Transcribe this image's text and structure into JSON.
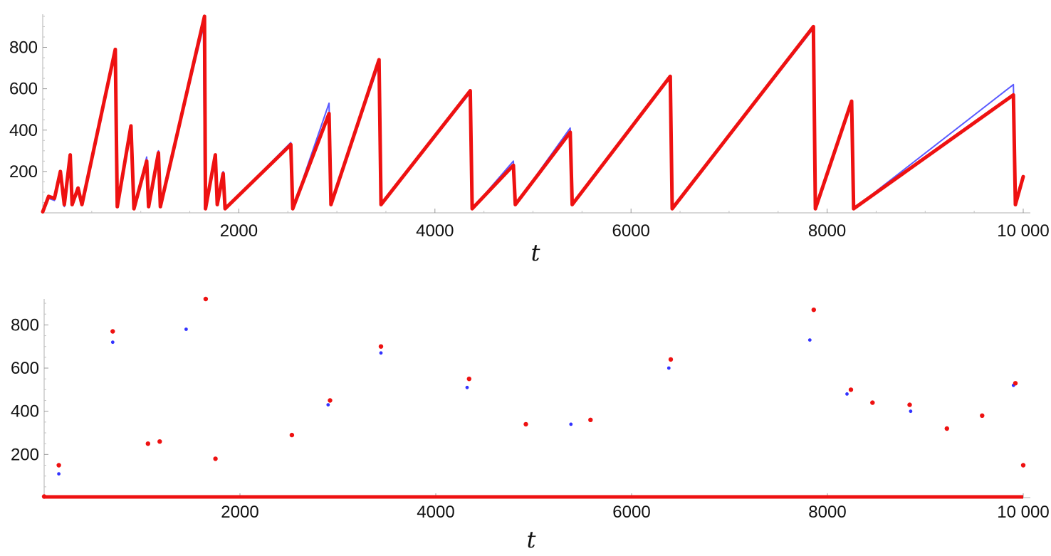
{
  "chart_data": [
    {
      "type": "line",
      "xlabel": "t",
      "ylabel": "",
      "xlim": [
        0,
        10000
      ],
      "ylim": [
        0,
        960
      ],
      "xticks": [
        2000,
        4000,
        6000,
        8000,
        10000
      ],
      "xtick_labels": [
        "2000",
        "4000",
        "6000",
        "8000",
        "10 000"
      ],
      "yticks": [
        200,
        400,
        600,
        800
      ],
      "ytick_labels": [
        "200",
        "400",
        "600",
        "800"
      ],
      "grid": false,
      "colors": {
        "blue": "#5a5aff",
        "red": "#ee1111"
      },
      "series": [
        {
          "color": "blue",
          "style": "thin-line",
          "points": [
            [
              0,
              5
            ],
            [
              60,
              70
            ],
            [
              120,
              60
            ],
            [
              180,
              190
            ],
            [
              220,
              30
            ],
            [
              280,
              270
            ],
            [
              300,
              40
            ],
            [
              360,
              110
            ],
            [
              400,
              40
            ],
            [
              740,
              770
            ],
            [
              760,
              30
            ],
            [
              900,
              420
            ],
            [
              930,
              20
            ],
            [
              1060,
              270
            ],
            [
              1080,
              30
            ],
            [
              1180,
              300
            ],
            [
              1200,
              30
            ],
            [
              1640,
              900
            ],
            [
              1650,
              20
            ],
            [
              1760,
              270
            ],
            [
              1780,
              40
            ],
            [
              1840,
              200
            ],
            [
              1860,
              20
            ],
            [
              2530,
              340
            ],
            [
              2550,
              20
            ],
            [
              2920,
              530
            ],
            [
              2940,
              40
            ],
            [
              3430,
              720
            ],
            [
              3450,
              40
            ],
            [
              4360,
              580
            ],
            [
              4380,
              20
            ],
            [
              4800,
              250
            ],
            [
              4820,
              40
            ],
            [
              5380,
              410
            ],
            [
              5400,
              40
            ],
            [
              6400,
              660
            ],
            [
              6420,
              20
            ],
            [
              7860,
              890
            ],
            [
              7880,
              20
            ],
            [
              8250,
              540
            ],
            [
              8270,
              20
            ],
            [
              9900,
              620
            ],
            [
              9920,
              40
            ],
            [
              10000,
              175
            ]
          ]
        },
        {
          "color": "red",
          "style": "thick-line",
          "points": [
            [
              0,
              5
            ],
            [
              60,
              80
            ],
            [
              120,
              70
            ],
            [
              180,
              200
            ],
            [
              220,
              40
            ],
            [
              280,
              280
            ],
            [
              300,
              40
            ],
            [
              360,
              120
            ],
            [
              400,
              40
            ],
            [
              740,
              790
            ],
            [
              760,
              30
            ],
            [
              900,
              420
            ],
            [
              930,
              20
            ],
            [
              1060,
              250
            ],
            [
              1080,
              30
            ],
            [
              1180,
              290
            ],
            [
              1200,
              30
            ],
            [
              1650,
              950
            ],
            [
              1660,
              20
            ],
            [
              1760,
              280
            ],
            [
              1780,
              40
            ],
            [
              1840,
              190
            ],
            [
              1860,
              20
            ],
            [
              2530,
              330
            ],
            [
              2550,
              20
            ],
            [
              2920,
              480
            ],
            [
              2940,
              40
            ],
            [
              3430,
              740
            ],
            [
              3450,
              40
            ],
            [
              4360,
              590
            ],
            [
              4380,
              20
            ],
            [
              4800,
              230
            ],
            [
              4820,
              40
            ],
            [
              5380,
              390
            ],
            [
              5400,
              40
            ],
            [
              6400,
              660
            ],
            [
              6420,
              20
            ],
            [
              7860,
              900
            ],
            [
              7880,
              20
            ],
            [
              8250,
              540
            ],
            [
              8270,
              20
            ],
            [
              9900,
              570
            ],
            [
              9920,
              40
            ],
            [
              10000,
              175
            ]
          ]
        }
      ]
    },
    {
      "type": "scatter",
      "xlabel": "t",
      "ylabel": "",
      "xlim": [
        0,
        10000
      ],
      "ylim": [
        0,
        920
      ],
      "xticks": [
        2000,
        4000,
        6000,
        8000,
        10000
      ],
      "xtick_labels": [
        "2000",
        "4000",
        "6000",
        "8000",
        "10 000"
      ],
      "yticks": [
        200,
        400,
        600,
        800
      ],
      "ytick_labels": [
        "200",
        "400",
        "600",
        "800"
      ],
      "grid": false,
      "colors": {
        "blue": "#3333ff",
        "red": "#ee1111"
      },
      "baseline_value": 0,
      "series": [
        {
          "color": "blue",
          "style": "small-dots",
          "points": [
            [
              150,
              110
            ],
            [
              700,
              720
            ],
            [
              1450,
              780
            ],
            [
              2900,
              430
            ],
            [
              3440,
              670
            ],
            [
              4320,
              510
            ],
            [
              5380,
              340
            ],
            [
              6380,
              600
            ],
            [
              7820,
              730
            ],
            [
              8200,
              480
            ],
            [
              8850,
              400
            ],
            [
              9900,
              520
            ]
          ]
        },
        {
          "color": "red",
          "style": "dots",
          "points": [
            [
              0,
              5
            ],
            [
              150,
              150
            ],
            [
              700,
              770
            ],
            [
              1060,
              250
            ],
            [
              1180,
              260
            ],
            [
              1650,
              920
            ],
            [
              1750,
              180
            ],
            [
              2530,
              290
            ],
            [
              2920,
              450
            ],
            [
              3440,
              700
            ],
            [
              4340,
              550
            ],
            [
              4920,
              340
            ],
            [
              5580,
              360
            ],
            [
              6400,
              640
            ],
            [
              7860,
              870
            ],
            [
              8240,
              500
            ],
            [
              8460,
              440
            ],
            [
              8840,
              430
            ],
            [
              9220,
              320
            ],
            [
              9580,
              380
            ],
            [
              9920,
              530
            ],
            [
              10000,
              150
            ]
          ]
        }
      ]
    }
  ]
}
